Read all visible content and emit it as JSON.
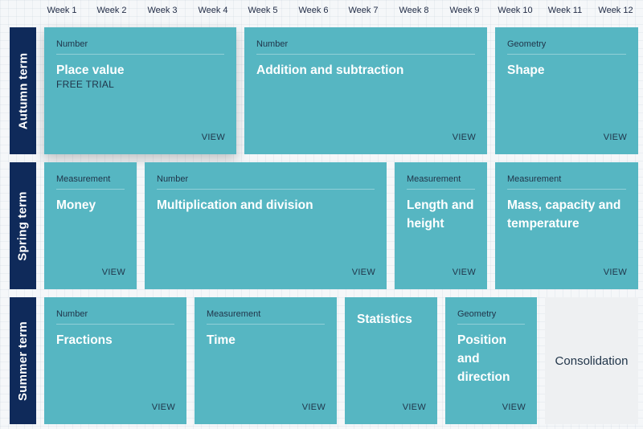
{
  "weeks": [
    "Week 1",
    "Week 2",
    "Week 3",
    "Week 4",
    "Week 5",
    "Week 6",
    "Week 7",
    "Week 8",
    "Week 9",
    "Week 10",
    "Week 11",
    "Week 12"
  ],
  "terms": {
    "autumn": "Autumn term",
    "spring": "Spring term",
    "summer": "Summer term"
  },
  "view_label": "VIEW",
  "cards": {
    "place_value": {
      "category": "Number",
      "title": "Place value",
      "badge": "FREE TRIAL"
    },
    "addition_subtraction": {
      "category": "Number",
      "title": "Addition and subtraction"
    },
    "shape": {
      "category": "Geometry",
      "title": "Shape"
    },
    "money": {
      "category": "Measurement",
      "title": "Money"
    },
    "multiplication_division": {
      "category": "Number",
      "title": "Multiplication and division"
    },
    "length_height": {
      "category": "Measurement",
      "title": "Length and height"
    },
    "mass_capacity": {
      "category": "Measurement",
      "title": "Mass, capacity and temperature"
    },
    "fractions": {
      "category": "Number",
      "title": "Fractions"
    },
    "time": {
      "category": "Measurement",
      "title": "Time"
    },
    "statistics": {
      "title": "Statistics"
    },
    "position_direction": {
      "category": "Geometry",
      "title": "Position and direction"
    }
  },
  "consolidation": "Consolidation",
  "colors": {
    "card": "#56b6c2",
    "term_bar": "#0f2a5a",
    "consolidation_bg": "#eef0f2"
  }
}
